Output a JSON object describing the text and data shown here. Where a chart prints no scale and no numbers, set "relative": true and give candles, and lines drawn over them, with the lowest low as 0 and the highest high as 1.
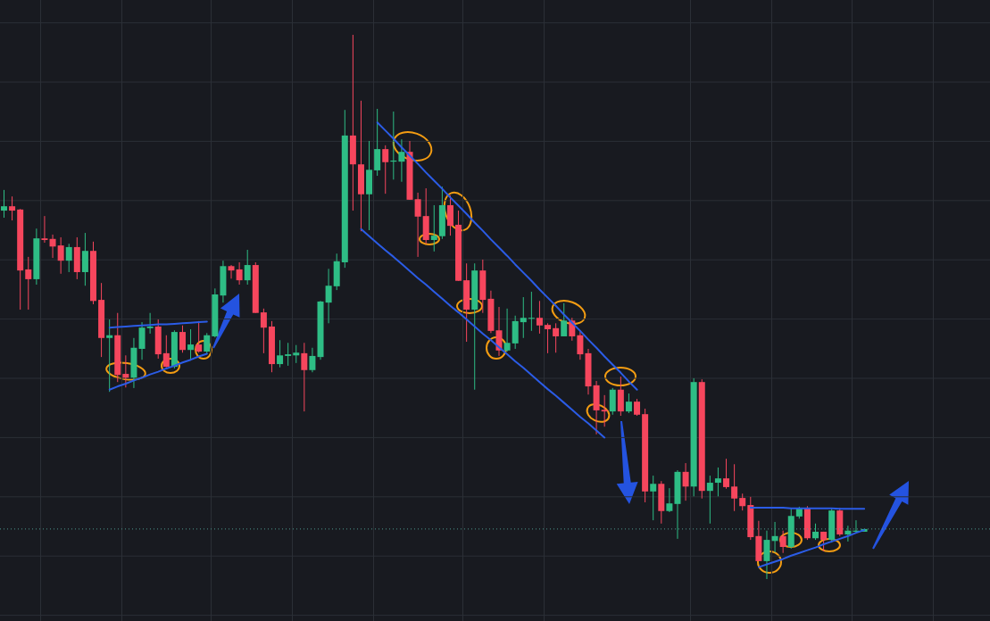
{
  "chart_data": {
    "type": "candlestick",
    "relative": true,
    "grid": true,
    "categories": [
      null,
      null,
      null,
      null,
      null,
      null,
      null,
      null,
      null,
      null,
      null,
      null,
      null,
      null,
      null,
      null,
      null,
      null,
      null,
      null,
      null,
      null,
      null,
      null,
      null,
      null,
      null,
      null,
      null,
      null,
      null,
      null,
      null,
      null,
      null,
      null,
      null,
      null,
      null,
      null,
      null,
      null,
      null,
      null,
      null,
      null,
      null,
      null,
      null,
      null,
      null,
      null,
      null,
      null,
      null,
      null,
      null,
      null,
      null,
      null,
      null,
      null,
      null,
      null,
      null,
      null,
      null,
      null,
      null,
      null,
      null,
      null,
      null,
      null,
      null,
      null,
      null,
      null,
      null,
      null,
      null,
      null,
      null,
      null,
      null,
      null,
      null,
      null,
      null,
      null,
      null,
      null,
      null,
      null,
      null,
      null,
      null,
      null,
      null,
      null,
      null,
      null,
      null,
      null,
      null,
      null,
      null,
      null,
      null,
      null,
      null,
      null,
      null,
      null,
      null,
      null,
      null,
      null,
      null,
      null,
      null,
      null
    ],
    "ohlc": [
      [
        0.677,
        0.715,
        0.664,
        0.685
      ],
      [
        0.685,
        0.703,
        0.659,
        0.677
      ],
      [
        0.679,
        0.68,
        0.495,
        0.567
      ],
      [
        0.569,
        0.592,
        0.495,
        0.551
      ],
      [
        0.551,
        0.644,
        0.541,
        0.626
      ],
      [
        0.626,
        0.667,
        0.618,
        0.623
      ],
      [
        0.625,
        0.633,
        0.59,
        0.611
      ],
      [
        0.613,
        0.628,
        0.561,
        0.585
      ],
      [
        0.585,
        0.616,
        0.564,
        0.61
      ],
      [
        0.61,
        0.628,
        0.551,
        0.564
      ],
      [
        0.564,
        0.636,
        0.539,
        0.603
      ],
      [
        0.603,
        0.62,
        0.505,
        0.511
      ],
      [
        0.513,
        0.544,
        0.408,
        0.443
      ],
      [
        0.443,
        0.477,
        0.344,
        0.448
      ],
      [
        0.448,
        0.489,
        0.362,
        0.375
      ],
      [
        0.377,
        0.411,
        0.352,
        0.37
      ],
      [
        0.37,
        0.443,
        0.351,
        0.425
      ],
      [
        0.423,
        0.472,
        0.403,
        0.462
      ],
      [
        0.461,
        0.489,
        0.451,
        0.464
      ],
      [
        0.464,
        0.477,
        0.405,
        0.413
      ],
      [
        0.415,
        0.448,
        0.389,
        0.39
      ],
      [
        0.39,
        0.457,
        0.387,
        0.454
      ],
      [
        0.454,
        0.466,
        0.416,
        0.421
      ],
      [
        0.421,
        0.459,
        0.403,
        0.431
      ],
      [
        0.431,
        0.474,
        0.416,
        0.418
      ],
      [
        0.418,
        0.452,
        0.413,
        0.448
      ],
      [
        0.446,
        0.534,
        0.444,
        0.523
      ],
      [
        0.521,
        0.585,
        0.508,
        0.575
      ],
      [
        0.575,
        0.577,
        0.552,
        0.567
      ],
      [
        0.569,
        0.582,
        0.541,
        0.549
      ],
      [
        0.549,
        0.605,
        0.541,
        0.577
      ],
      [
        0.577,
        0.582,
        0.489,
        0.489
      ],
      [
        0.49,
        0.497,
        0.415,
        0.462
      ],
      [
        0.464,
        0.474,
        0.38,
        0.395
      ],
      [
        0.395,
        0.439,
        0.389,
        0.411
      ],
      [
        0.41,
        0.434,
        0.392,
        0.413
      ],
      [
        0.411,
        0.43,
        0.397,
        0.416
      ],
      [
        0.415,
        0.434,
        0.308,
        0.384
      ],
      [
        0.384,
        0.425,
        0.38,
        0.41
      ],
      [
        0.408,
        0.511,
        0.403,
        0.51
      ],
      [
        0.508,
        0.57,
        0.47,
        0.539
      ],
      [
        0.538,
        0.598,
        0.531,
        0.584
      ],
      [
        0.582,
        0.862,
        0.572,
        0.815
      ],
      [
        0.815,
        1,
        0.677,
        0.762
      ],
      [
        0.762,
        0.879,
        0.639,
        0.707
      ],
      [
        0.707,
        0.805,
        0.641,
        0.752
      ],
      [
        0.751,
        0.864,
        0.741,
        0.79
      ],
      [
        0.79,
        0.797,
        0.708,
        0.766
      ],
      [
        0.767,
        0.859,
        0.734,
        0.769
      ],
      [
        0.767,
        0.808,
        0.73,
        0.785
      ],
      [
        0.785,
        0.805,
        0.697,
        0.697
      ],
      [
        0.698,
        0.71,
        0.592,
        0.666
      ],
      [
        0.667,
        0.718,
        0.616,
        0.623
      ],
      [
        0.623,
        0.687,
        0.602,
        0.631
      ],
      [
        0.63,
        0.721,
        0.625,
        0.687
      ],
      [
        0.687,
        0.705,
        0.631,
        0.649
      ],
      [
        0.651,
        0.677,
        0.548,
        0.548
      ],
      [
        0.549,
        0.58,
        0.436,
        0.495
      ],
      [
        0.495,
        0.58,
        0.348,
        0.567
      ],
      [
        0.567,
        0.587,
        0.489,
        0.513
      ],
      [
        0.515,
        0.53,
        0.452,
        0.456
      ],
      [
        0.457,
        0.5,
        0.41,
        0.42
      ],
      [
        0.42,
        0.497,
        0.418,
        0.434
      ],
      [
        0.433,
        0.484,
        0.423,
        0.474
      ],
      [
        0.472,
        0.518,
        0.443,
        0.48
      ],
      [
        0.479,
        0.528,
        0.456,
        0.48
      ],
      [
        0.48,
        0.511,
        0.451,
        0.466
      ],
      [
        0.467,
        0.47,
        0.415,
        0.459
      ],
      [
        0.461,
        0.47,
        0.416,
        0.446
      ],
      [
        0.446,
        0.507,
        0.446,
        0.475
      ],
      [
        0.475,
        0.48,
        0.438,
        0.446
      ],
      [
        0.448,
        0.457,
        0.403,
        0.413
      ],
      [
        0.415,
        0.423,
        0.339,
        0.354
      ],
      [
        0.356,
        0.364,
        0.266,
        0.31
      ],
      [
        0.311,
        0.338,
        0.28,
        0.308
      ],
      [
        0.308,
        0.351,
        0.302,
        0.348
      ],
      [
        0.348,
        0.372,
        0.3,
        0.308
      ],
      [
        0.308,
        0.341,
        0.305,
        0.326
      ],
      [
        0.326,
        0.331,
        0.3,
        0.302
      ],
      [
        0.303,
        0.313,
        0.141,
        0.161
      ],
      [
        0.161,
        0.19,
        0.108,
        0.175
      ],
      [
        0.175,
        0.18,
        0.102,
        0.125
      ],
      [
        0.125,
        0.167,
        0.123,
        0.139
      ],
      [
        0.138,
        0.2,
        0.074,
        0.197
      ],
      [
        0.197,
        0.213,
        0.144,
        0.17
      ],
      [
        0.17,
        0.369,
        0.152,
        0.362
      ],
      [
        0.362,
        0.367,
        0.148,
        0.162
      ],
      [
        0.162,
        0.19,
        0.102,
        0.177
      ],
      [
        0.177,
        0.205,
        0.152,
        0.185
      ],
      [
        0.185,
        0.221,
        0.166,
        0.169
      ],
      [
        0.17,
        0.211,
        0.125,
        0.148
      ],
      [
        0.149,
        0.157,
        0.126,
        0.134
      ],
      [
        0.136,
        0.151,
        0.072,
        0.077
      ],
      [
        0.079,
        0.107,
        0.033,
        0.033
      ],
      [
        0.033,
        0.089,
        0,
        0.072
      ],
      [
        0.07,
        0.105,
        0.049,
        0.079
      ],
      [
        0.079,
        0.089,
        0.048,
        0.059
      ],
      [
        0.059,
        0.13,
        0.056,
        0.116
      ],
      [
        0.115,
        0.133,
        0.111,
        0.13
      ],
      [
        0.13,
        0.134,
        0.072,
        0.075
      ],
      [
        0.075,
        0.102,
        0.072,
        0.087
      ],
      [
        0.087,
        0.087,
        0.051,
        0.072
      ],
      [
        0.072,
        0.131,
        0.067,
        0.126
      ],
      [
        0.126,
        0.131,
        0.079,
        0.082
      ],
      [
        0.082,
        0.098,
        0.069,
        0.089
      ],
      [
        0.087,
        0.108,
        0.085,
        0.089
      ],
      [
        0.087,
        0.092,
        0.087,
        0.092
      ],
      null,
      null,
      null,
      null,
      null,
      null,
      null,
      null,
      null,
      null,
      null,
      null,
      null,
      null,
      null
    ],
    "colors": [
      "#2ebd85",
      "#f6465d",
      "#f6465d",
      "#f6465d",
      "#2ebd85",
      "#f6465d",
      "#f6465d",
      "#f6465d",
      "#2ebd85",
      "#f6465d",
      "#2ebd85",
      "#f6465d",
      "#f6465d",
      "#2ebd85",
      "#f6465d",
      "#f6465d",
      "#2ebd85",
      "#2ebd85",
      "#2ebd85",
      "#f6465d",
      "#f6465d",
      "#2ebd85",
      "#f6465d",
      "#2ebd85",
      "#f6465d",
      "#2ebd85",
      "#2ebd85",
      "#2ebd85",
      "#f6465d",
      "#f6465d",
      "#2ebd85",
      "#f6465d",
      "#f6465d",
      "#f6465d",
      "#2ebd85",
      "#2ebd85",
      "#2ebd85",
      "#f6465d",
      "#2ebd85",
      "#2ebd85",
      "#2ebd85",
      "#2ebd85",
      "#2ebd85",
      "#f6465d",
      "#f6465d",
      "#2ebd85",
      "#2ebd85",
      "#f6465d",
      "#2ebd85",
      "#2ebd85",
      "#f6465d",
      "#f6465d",
      "#f6465d",
      "#2ebd85",
      "#2ebd85",
      "#f6465d",
      "#f6465d",
      "#f6465d",
      "#2ebd85",
      "#f6465d",
      "#f6465d",
      "#f6465d",
      "#2ebd85",
      "#2ebd85",
      "#2ebd85",
      "#2ebd85",
      "#f6465d",
      "#f6465d",
      "#f6465d",
      "#2ebd85",
      "#f6465d",
      "#f6465d",
      "#f6465d",
      "#f6465d",
      "#f6465d",
      "#2ebd85",
      "#f6465d",
      "#2ebd85",
      "#f6465d",
      "#f6465d",
      "#2ebd85",
      "#f6465d",
      "#2ebd85",
      "#2ebd85",
      "#f6465d",
      "#2ebd85",
      "#f6465d",
      "#2ebd85",
      "#2ebd85",
      "#f6465d",
      "#f6465d",
      "#f6465d",
      "#f6465d",
      "#f6465d",
      "#2ebd85",
      "#2ebd85",
      "#f6465d",
      "#2ebd85",
      "#2ebd85",
      "#f6465d",
      "#2ebd85",
      "#f6465d",
      "#2ebd85",
      "#f6465d",
      "#2ebd85",
      "#2ebd85",
      "#2ebd85",
      null,
      null,
      null,
      null,
      null,
      null,
      null,
      null,
      null,
      null,
      null,
      null,
      null,
      null,
      null
    ],
    "series": [
      {
        "type": "line",
        "color": "#2b5ce6",
        "values": [
          null,
          null,
          null,
          null,
          null,
          null,
          null,
          null,
          null,
          null,
          null,
          null,
          null,
          0.462,
          0.463,
          0.464,
          0.465,
          0.466,
          0.467,
          0.468,
          0.468,
          0.469,
          0.47,
          0.471,
          0.472,
          0.473,
          null,
          null,
          null,
          null,
          null,
          null,
          null,
          null,
          null,
          null,
          null,
          null,
          null,
          null,
          null,
          null,
          null,
          null,
          null,
          null,
          null,
          null,
          null,
          null,
          null,
          null,
          null,
          null,
          null,
          null,
          null,
          null,
          null,
          null,
          null,
          null,
          null,
          null,
          null,
          null,
          null,
          null,
          null,
          null,
          null,
          null,
          null,
          null,
          null,
          null,
          null,
          null,
          null,
          null,
          null,
          null,
          null,
          null,
          null,
          null,
          null,
          null,
          null,
          null,
          null,
          null,
          null,
          null,
          null,
          null,
          null,
          null,
          null,
          null,
          null,
          null,
          null,
          null,
          null,
          null,
          null,
          null,
          null,
          null,
          null,
          null,
          null,
          null,
          null,
          null,
          null,
          null,
          null,
          null,
          null,
          null
        ]
      },
      {
        "type": "line",
        "color": "#2b5ce6",
        "values": [
          null,
          null,
          null,
          null,
          null,
          null,
          null,
          null,
          null,
          null,
          null,
          null,
          null,
          0.348,
          0.354,
          0.359,
          0.365,
          0.37,
          0.376,
          0.381,
          0.387,
          0.392,
          0.398,
          0.403,
          0.409,
          0.414,
          null,
          null,
          null,
          null,
          null,
          null,
          null,
          null,
          null,
          null,
          null,
          null,
          null,
          null,
          null,
          null,
          null,
          null,
          null,
          null,
          null,
          null,
          null,
          null,
          null,
          null,
          null,
          null,
          null,
          null,
          null,
          null,
          null,
          null,
          null,
          null,
          null,
          null,
          null,
          null,
          null,
          null,
          null,
          null,
          null,
          null,
          null,
          null,
          null,
          null,
          null,
          null,
          null,
          null,
          null,
          null,
          null,
          null,
          null,
          null,
          null,
          null,
          null,
          null,
          null,
          null,
          null,
          null,
          null,
          null,
          null,
          null,
          null,
          null,
          null,
          null,
          null,
          null,
          null,
          null,
          null,
          null,
          null,
          null,
          null,
          null,
          null,
          null,
          null,
          null,
          null,
          null,
          null,
          null,
          null,
          null
        ]
      },
      {
        "type": "line",
        "color": "#2b5ce6",
        "values": [
          null,
          null,
          null,
          null,
          null,
          null,
          null,
          null,
          null,
          null,
          null,
          null,
          null,
          null,
          null,
          null,
          null,
          null,
          null,
          null,
          null,
          null,
          null,
          null,
          null,
          null,
          null,
          null,
          null,
          null,
          null,
          null,
          null,
          null,
          null,
          null,
          null,
          null,
          null,
          null,
          null,
          null,
          null,
          null,
          null,
          null,
          0.839,
          0.824,
          0.809,
          0.793,
          0.778,
          0.763,
          0.747,
          0.732,
          0.717,
          0.701,
          0.686,
          0.671,
          0.655,
          0.64,
          0.624,
          0.609,
          0.594,
          0.578,
          0.563,
          0.548,
          0.532,
          0.517,
          0.502,
          0.486,
          0.471,
          0.456,
          0.44,
          0.425,
          0.409,
          0.394,
          0.379,
          0.363,
          0.348,
          null,
          null,
          null,
          null,
          null,
          null,
          null,
          null,
          null,
          null,
          null,
          null,
          null,
          null,
          null,
          null,
          null,
          null,
          null,
          null,
          null,
          null,
          null,
          null,
          null,
          null,
          null,
          null,
          null,
          null,
          null,
          null,
          null,
          null,
          null,
          null,
          null,
          null,
          null,
          null,
          null,
          null,
          null
        ]
      },
      {
        "type": "line",
        "color": "#2b5ce6",
        "values": [
          null,
          null,
          null,
          null,
          null,
          null,
          null,
          null,
          null,
          null,
          null,
          null,
          null,
          null,
          null,
          null,
          null,
          null,
          null,
          null,
          null,
          null,
          null,
          null,
          null,
          null,
          null,
          null,
          null,
          null,
          null,
          null,
          null,
          null,
          null,
          null,
          null,
          null,
          null,
          null,
          null,
          null,
          null,
          null,
          0.643,
          0.63,
          0.617,
          0.604,
          0.592,
          0.579,
          0.566,
          0.553,
          0.541,
          0.528,
          0.515,
          0.502,
          0.49,
          0.477,
          0.464,
          0.451,
          0.439,
          0.426,
          0.413,
          0.4,
          0.388,
          0.375,
          0.362,
          0.349,
          0.337,
          0.324,
          0.311,
          0.298,
          0.286,
          0.273,
          0.26,
          null,
          null,
          null,
          null,
          null,
          null,
          null,
          null,
          null,
          null,
          null,
          null,
          null,
          null,
          null,
          null,
          null,
          null,
          null,
          null,
          null,
          null,
          null,
          null,
          null,
          null,
          null,
          null,
          null,
          null,
          null,
          null,
          null,
          null,
          null,
          null,
          null,
          null,
          null,
          null,
          null,
          null,
          null,
          null,
          null,
          null,
          null
        ]
      },
      {
        "type": "line",
        "color": "#2b5ce6",
        "values": [
          null,
          null,
          null,
          null,
          null,
          null,
          null,
          null,
          null,
          null,
          null,
          null,
          null,
          null,
          null,
          null,
          null,
          null,
          null,
          null,
          null,
          null,
          null,
          null,
          null,
          null,
          null,
          null,
          null,
          null,
          null,
          null,
          null,
          null,
          null,
          null,
          null,
          null,
          null,
          null,
          null,
          null,
          null,
          null,
          null,
          null,
          null,
          null,
          null,
          null,
          null,
          null,
          null,
          null,
          null,
          null,
          null,
          null,
          null,
          null,
          null,
          null,
          null,
          null,
          null,
          null,
          null,
          null,
          null,
          null,
          null,
          null,
          null,
          null,
          null,
          null,
          null,
          null,
          null,
          null,
          null,
          null,
          null,
          null,
          null,
          null,
          null,
          null,
          null,
          null,
          null,
          null,
          0.131,
          0.131,
          0.131,
          0.131,
          0.131,
          0.13,
          0.13,
          0.13,
          0.13,
          0.13,
          0.13,
          0.129,
          0.129,
          0.129,
          0.129,
          null,
          null,
          null,
          null,
          null,
          null,
          null,
          null,
          null,
          null,
          null,
          null,
          null,
          null,
          null
        ]
      },
      {
        "type": "line",
        "color": "#2b5ce6",
        "values": [
          null,
          null,
          null,
          null,
          null,
          null,
          null,
          null,
          null,
          null,
          null,
          null,
          null,
          null,
          null,
          null,
          null,
          null,
          null,
          null,
          null,
          null,
          null,
          null,
          null,
          null,
          null,
          null,
          null,
          null,
          null,
          null,
          null,
          null,
          null,
          null,
          null,
          null,
          null,
          null,
          null,
          null,
          null,
          null,
          null,
          null,
          null,
          null,
          null,
          null,
          null,
          null,
          null,
          null,
          null,
          null,
          null,
          null,
          null,
          null,
          null,
          null,
          null,
          null,
          null,
          null,
          null,
          null,
          null,
          null,
          null,
          null,
          null,
          null,
          null,
          null,
          null,
          null,
          null,
          null,
          null,
          null,
          null,
          null,
          null,
          null,
          null,
          null,
          null,
          null,
          null,
          null,
          null,
          0.022,
          0.027,
          0.032,
          0.037,
          0.043,
          0.048,
          0.053,
          0.058,
          0.064,
          0.069,
          0.074,
          0.079,
          0.085,
          0.09,
          null,
          null,
          null,
          null,
          null,
          null,
          null,
          null,
          null,
          null,
          null,
          null,
          null,
          null,
          null
        ]
      }
    ],
    "ref_lines": [
      {
        "axis": "y",
        "value": 0.092,
        "color": "#4f9a8f",
        "line_style": "dotted"
      }
    ]
  }
}
